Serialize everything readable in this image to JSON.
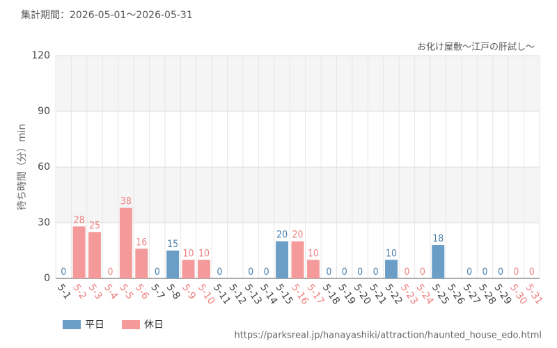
{
  "period": "集計期間：2026-05-01～2026-05-31",
  "source": "https://parksreal.jp/hanayashiki/attraction/haunted_house_edo.html",
  "chart_data": {
    "type": "bar",
    "title": "お化け屋敷～江戸の肝試し～",
    "y_label": "待ち時間（分）min",
    "categories": [
      "5-1",
      "5-2",
      "5-3",
      "5-4",
      "5-5",
      "5-6",
      "5-7",
      "5-8",
      "5-9",
      "5-10",
      "5-11",
      "5-12",
      "5-13",
      "5-14",
      "5-15",
      "5-16",
      "5-17",
      "5-18",
      "5-19",
      "5-20",
      "5-21",
      "5-22",
      "5-23",
      "5-24",
      "5-25",
      "5-26",
      "5-27",
      "5-28",
      "5-29",
      "5-30",
      "5-31"
    ],
    "series": [
      {
        "name": "平日",
        "color": "#6b9ec6",
        "label_color": "#4a7fab",
        "values": [
          0,
          null,
          null,
          null,
          null,
          null,
          0,
          15,
          null,
          null,
          0,
          null,
          0,
          0,
          20,
          null,
          null,
          0,
          0,
          0,
          0,
          10,
          null,
          null,
          18,
          null,
          0,
          0,
          0,
          null,
          null
        ]
      },
      {
        "name": "休日",
        "color": "#f59a9a",
        "label_color": "#ee7f7f",
        "values": [
          null,
          28,
          25,
          0,
          38,
          16,
          null,
          null,
          10,
          10,
          null,
          null,
          null,
          null,
          null,
          20,
          10,
          null,
          null,
          null,
          null,
          null,
          0,
          0,
          null,
          null,
          null,
          null,
          null,
          0,
          0
        ]
      }
    ],
    "ylim": [
      0,
      120
    ],
    "yticks": [
      0,
      30,
      60,
      90,
      120
    ],
    "grid": true
  }
}
